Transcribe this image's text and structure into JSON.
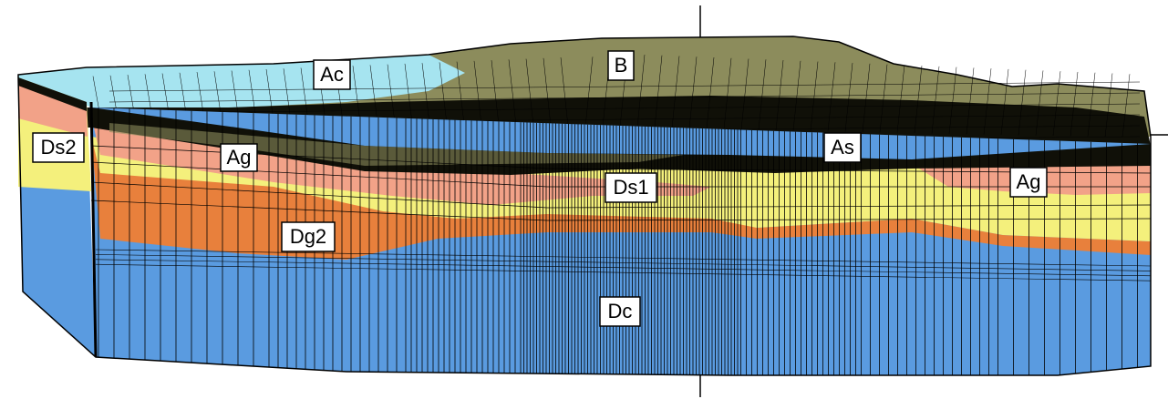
{
  "layers": {
    "Ac": "Ac",
    "B": "B",
    "Ds2": "Ds2",
    "Ag_left": "Ag",
    "As": "As",
    "Ds1": "Ds1",
    "Ag_right": "Ag",
    "Dg2": "Dg2",
    "Dc": "Dc"
  },
  "colors": {
    "Ac": "#a6e4f0",
    "B": "#8c8c5c",
    "dark_top": "#101008",
    "Ds": "#f4f07c",
    "Ag": "#f2a288",
    "Dg": "#e8803c",
    "Dc": "#5a9be0",
    "grid": "#000000"
  }
}
